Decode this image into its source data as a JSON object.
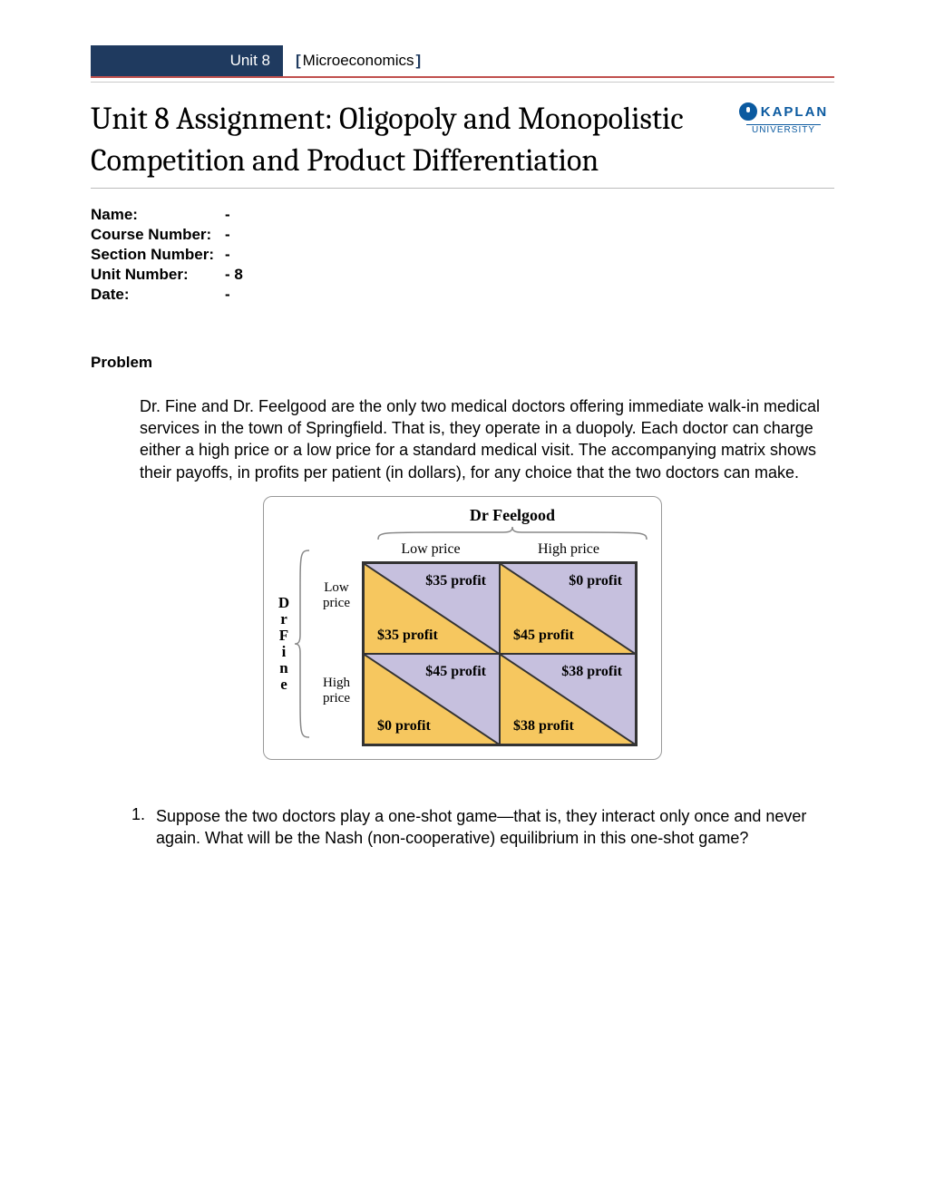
{
  "header": {
    "unit_label": "Unit 8",
    "subject": "Microeconomics"
  },
  "title": "Unit 8 Assignment: Oligopoly and Monopolistic Competition and Product Differentiation",
  "logo": {
    "brand": "KAPLAN",
    "sub": "UNIVERSITY"
  },
  "info": {
    "rows": [
      {
        "label": "Name:",
        "value": "-"
      },
      {
        "label": "Course Number:",
        "value": "-"
      },
      {
        "label": "Section Number:",
        "value": "-"
      },
      {
        "label": "Unit Number:",
        "value": "- 8"
      },
      {
        "label": "Date:",
        "value": "-"
      }
    ]
  },
  "section_heading": "Problem",
  "problem_text": "Dr. Fine and Dr. Feelgood are the only two medical doctors offering immediate walk-in medical services in the town of Springfield. That is, they operate in a duopoly. Each doctor can charge either a high price or a low price for a standard medical visit. The accompanying matrix shows their payoffs, in profits per patient (in dollars), for any choice that the two doctors can make.",
  "matrix": {
    "col_player": "Dr Feelgood",
    "row_player_letters": [
      "D",
      "r",
      "F",
      "i",
      "n",
      "e"
    ],
    "col_labels": [
      "Low price",
      "High price"
    ],
    "row_labels": [
      "Low price",
      "High price"
    ],
    "colors": {
      "upper_fill": "#c6c0de",
      "lower_fill": "#f6c75f",
      "border": "#333333"
    },
    "cells": [
      {
        "upper": "$35 profit",
        "lower": "$35 profit"
      },
      {
        "upper": "$0 profit",
        "lower": "$45 profit"
      },
      {
        "upper": "$45 profit",
        "lower": "$0 profit"
      },
      {
        "upper": "$38 profit",
        "lower": "$38 profit"
      }
    ]
  },
  "question": {
    "number": "1.",
    "text": "Suppose the two doctors play a one-shot game—that is, they interact only once and never again. What will be the Nash (non-cooperative) equilibrium in this one-shot game?"
  }
}
